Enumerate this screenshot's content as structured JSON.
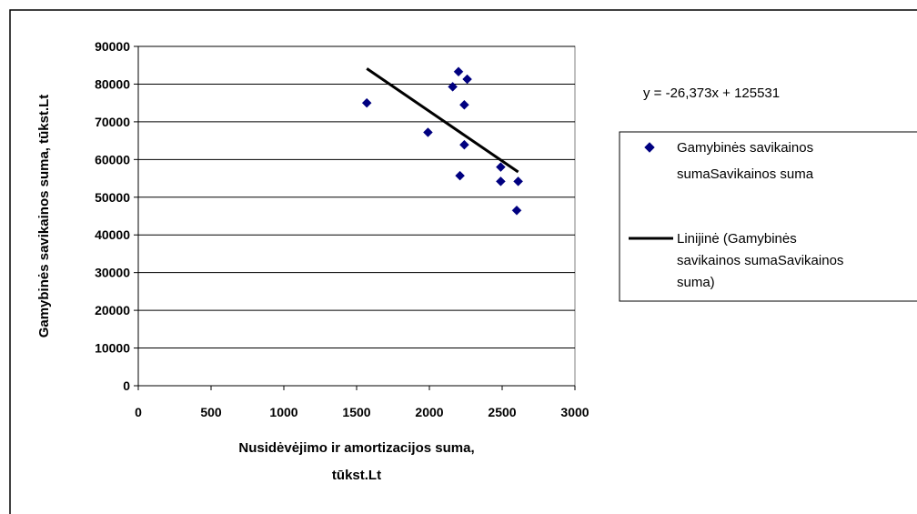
{
  "chart_data": {
    "type": "scatter",
    "xlabel_lines": [
      "Nusidėvėjimo ir amortizacijos suma,",
      "tūkst.Lt"
    ],
    "ylabel": "Gamybinės savikainos suma, tūkst.Lt",
    "xlim": [
      0,
      3000
    ],
    "ylim": [
      0,
      90000
    ],
    "x_ticks": [
      0,
      500,
      1000,
      1500,
      2000,
      2500,
      3000
    ],
    "y_ticks": [
      0,
      10000,
      20000,
      30000,
      40000,
      50000,
      60000,
      70000,
      80000,
      90000
    ],
    "x_tick_labels": [
      "0",
      "500",
      "1000",
      "1500",
      "2000",
      "2500",
      "3000"
    ],
    "y_tick_labels": [
      "0",
      "10000",
      "20000",
      "30000",
      "40000",
      "50000",
      "60000",
      "70000",
      "80000",
      "90000"
    ],
    "grid": "horizontal",
    "series": [
      {
        "kind": "scatter",
        "marker": "diamond",
        "color": "#000080",
        "points": [
          [
            1570,
            75000
          ],
          [
            1990,
            67200
          ],
          [
            2160,
            79300
          ],
          [
            2200,
            83300
          ],
          [
            2260,
            81300
          ],
          [
            2240,
            74500
          ],
          [
            2240,
            63900
          ],
          [
            2210,
            55700
          ],
          [
            2490,
            58000
          ],
          [
            2490,
            54200
          ],
          [
            2610,
            54200
          ],
          [
            2600,
            46500
          ]
        ]
      },
      {
        "kind": "trendline",
        "color": "#000000",
        "slope": -26.373,
        "intercept": 125531,
        "x_range": [
          1570,
          2610
        ]
      }
    ],
    "equation": "y = -26,373x + 125531",
    "legend": {
      "placement": "right",
      "entries": [
        {
          "symbol": "diamond",
          "lines": [
            "Gamybinės savikainos",
            "sumaSavikainos suma"
          ]
        },
        {
          "symbol": "line",
          "lines": [
            "Linijinė (Gamybinės",
            "savikainos sumaSavikainos",
            "suma)"
          ]
        }
      ]
    }
  }
}
